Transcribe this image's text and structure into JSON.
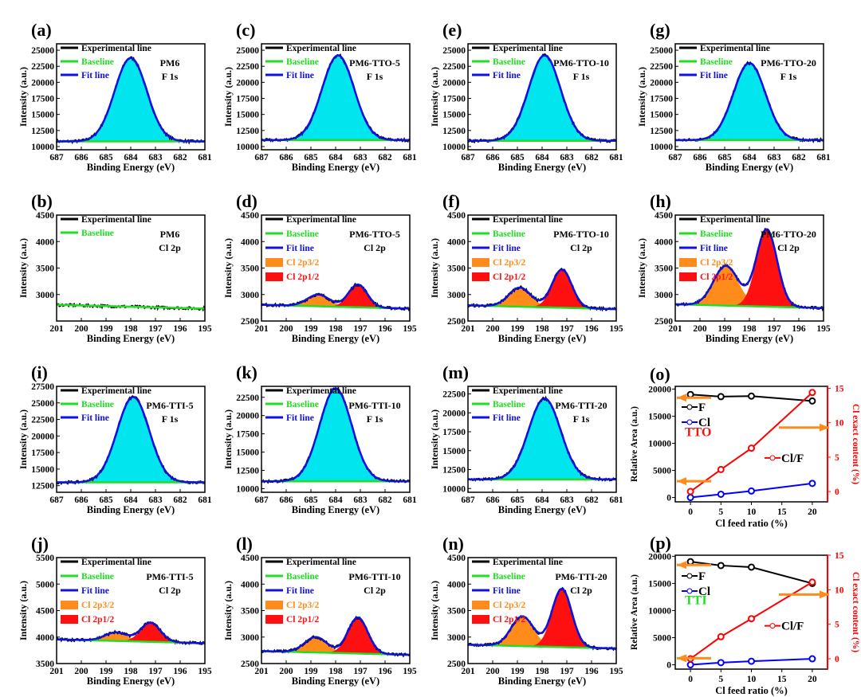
{
  "chart_data": [
    {
      "type": "line",
      "panel": "(a)",
      "sample": "PM6",
      "core": "F 1s",
      "region": "F",
      "ylim": [
        9500,
        26000
      ],
      "yticks": [
        10000,
        12500,
        15000,
        17500,
        20000,
        22500,
        25000
      ],
      "baseline": 10800,
      "peaks": [
        {
          "center": 684,
          "amp": 13000,
          "sigma": 0.65,
          "color": "#00e5ee"
        }
      ],
      "legend": [
        "Experimental line",
        "Baseline",
        "Fit line"
      ]
    },
    {
      "type": "line",
      "panel": "(c)",
      "sample": "PM6-TTO-5",
      "core": "F 1s",
      "region": "F",
      "ylim": [
        9500,
        26000
      ],
      "yticks": [
        10000,
        12500,
        15000,
        17500,
        20000,
        22500,
        25000
      ],
      "baseline": 11000,
      "peaks": [
        {
          "center": 683.9,
          "amp": 13200,
          "sigma": 0.65,
          "color": "#00e5ee"
        }
      ],
      "legend": [
        "Experimental line",
        "Baseline",
        "Fit line"
      ]
    },
    {
      "type": "line",
      "panel": "(e)",
      "sample": "PM6-TTO-10",
      "core": "F 1s",
      "region": "F",
      "ylim": [
        9500,
        26000
      ],
      "yticks": [
        10000,
        12500,
        15000,
        17500,
        20000,
        22500,
        25000
      ],
      "baseline": 10900,
      "peaks": [
        {
          "center": 683.9,
          "amp": 13300,
          "sigma": 0.65,
          "color": "#00e5ee"
        }
      ],
      "legend": [
        "Experimental line",
        "Baseline",
        "Fit line"
      ]
    },
    {
      "type": "line",
      "panel": "(g)",
      "sample": "PM6-TTO-20",
      "core": "F 1s",
      "region": "F",
      "ylim": [
        9500,
        26000
      ],
      "yticks": [
        10000,
        12500,
        15000,
        17500,
        20000,
        22500,
        25000
      ],
      "baseline": 11000,
      "peaks": [
        {
          "center": 684,
          "amp": 12000,
          "sigma": 0.65,
          "color": "#00e5ee"
        }
      ],
      "legend": [
        "Experimental line",
        "Baseline",
        "Fit line"
      ]
    },
    {
      "type": "line",
      "panel": "(b)",
      "sample": "PM6",
      "core": "Cl 2p",
      "region": "Cl",
      "ylim": [
        2500,
        4500
      ],
      "yticks": [
        3000,
        3500,
        4000,
        4500
      ],
      "baseline": 2770,
      "peaks": [],
      "legend": [
        "Experimental line",
        "Baseline"
      ]
    },
    {
      "type": "line",
      "panel": "(d)",
      "sample": "PM6-TTO-5",
      "core": "Cl 2p",
      "region": "Cl",
      "ylim": [
        2500,
        4500
      ],
      "yticks": [
        2500,
        3000,
        3500,
        4000,
        4500
      ],
      "baseline": 2770,
      "peaks": [
        {
          "center": 198.7,
          "amp": 220,
          "sigma": 0.45,
          "color": "#ff8c1a"
        },
        {
          "center": 197.1,
          "amp": 430,
          "sigma": 0.38,
          "color": "#ff1010"
        }
      ],
      "legend": [
        "Experimental line",
        "Baseline",
        "Fit line",
        "Cl 2p3/2",
        "Cl 2p1/2"
      ]
    },
    {
      "type": "line",
      "panel": "(f)",
      "sample": "PM6-TTO-10",
      "core": "Cl 2p",
      "region": "Cl",
      "ylim": [
        2500,
        4500
      ],
      "yticks": [
        2500,
        3000,
        3500,
        4000,
        4500
      ],
      "baseline": 2760,
      "peaks": [
        {
          "center": 198.9,
          "amp": 360,
          "sigma": 0.45,
          "color": "#ff8c1a"
        },
        {
          "center": 197.2,
          "amp": 720,
          "sigma": 0.4,
          "color": "#ff1010"
        }
      ],
      "legend": [
        "Experimental line",
        "Baseline",
        "Fit line",
        "Cl 2p3/2",
        "Cl 2p1/2"
      ]
    },
    {
      "type": "line",
      "panel": "(h)",
      "sample": "PM6-TTO-20",
      "core": "Cl 2p",
      "region": "Cl",
      "ylim": [
        2500,
        4500
      ],
      "yticks": [
        2500,
        3000,
        3500,
        4000,
        4500
      ],
      "baseline": 2780,
      "peaks": [
        {
          "center": 198.95,
          "amp": 750,
          "sigma": 0.5,
          "color": "#ff8c1a"
        },
        {
          "center": 197.3,
          "amp": 1460,
          "sigma": 0.42,
          "color": "#ff1010"
        }
      ],
      "legend": [
        "Experimental line",
        "Baseline",
        "Fit line",
        "Cl 2p3/2",
        "Cl 2p1/2"
      ]
    },
    {
      "type": "line",
      "panel": "(i)",
      "sample": "PM6-TTI-5",
      "core": "F 1s",
      "region": "F",
      "ylim": [
        11500,
        27500
      ],
      "yticks": [
        12500,
        15000,
        17500,
        20000,
        22500,
        25000,
        27500
      ],
      "baseline": 13000,
      "peaks": [
        {
          "center": 683.9,
          "amp": 12900,
          "sigma": 0.65,
          "color": "#00e5ee"
        }
      ],
      "legend": [
        "Experimental line",
        "Baseline",
        "Fit line"
      ]
    },
    {
      "type": "line",
      "panel": "(k)",
      "sample": "PM6-TTI-10",
      "core": "F 1s",
      "region": "F",
      "ylim": [
        9500,
        24000
      ],
      "yticks": [
        10000,
        12500,
        15000,
        17500,
        20000,
        22500
      ],
      "baseline": 11000,
      "peaks": [
        {
          "center": 684,
          "amp": 12700,
          "sigma": 0.65,
          "color": "#00e5ee"
        }
      ],
      "legend": [
        "Experimental line",
        "Baseline",
        "Fit line"
      ]
    },
    {
      "type": "line",
      "panel": "(m)",
      "sample": "PM6-TTI-20",
      "core": "F 1s",
      "region": "F",
      "ylim": [
        9500,
        23500
      ],
      "yticks": [
        10000,
        12500,
        15000,
        17500,
        20000,
        22500
      ],
      "baseline": 11200,
      "peaks": [
        {
          "center": 683.9,
          "amp": 10700,
          "sigma": 0.65,
          "color": "#00e5ee"
        }
      ],
      "legend": [
        "Experimental line",
        "Baseline",
        "Fit line"
      ]
    },
    {
      "type": "line",
      "panel": "(j)",
      "sample": "PM6-TTI-5",
      "core": "Cl 2p",
      "region": "Cl",
      "ylim": [
        3500,
        5500
      ],
      "yticks": [
        3500,
        4000,
        4500,
        5000,
        5500
      ],
      "baseline": 3920,
      "peaks": [
        {
          "center": 198.6,
          "amp": 160,
          "sigma": 0.45,
          "color": "#ff8c1a"
        },
        {
          "center": 197.2,
          "amp": 360,
          "sigma": 0.4,
          "color": "#ff1010"
        }
      ],
      "legend": [
        "Experimental line",
        "Baseline",
        "Fit line",
        "Cl 2p3/2",
        "Cl 2p1/2"
      ]
    },
    {
      "type": "line",
      "panel": "(l)",
      "sample": "PM6-TTI-10",
      "core": "Cl 2p",
      "region": "Cl",
      "ylim": [
        2500,
        4500
      ],
      "yticks": [
        2500,
        3000,
        3500,
        4000,
        4500
      ],
      "baseline": 2700,
      "peaks": [
        {
          "center": 198.8,
          "amp": 290,
          "sigma": 0.45,
          "color": "#ff8c1a"
        },
        {
          "center": 197.1,
          "amp": 680,
          "sigma": 0.4,
          "color": "#ff1010"
        }
      ],
      "legend": [
        "Experimental line",
        "Baseline",
        "Fit line",
        "Cl 2p3/2",
        "Cl 2p1/2"
      ]
    },
    {
      "type": "line",
      "panel": "(n)",
      "sample": "PM6-TTI-20",
      "core": "Cl 2p",
      "region": "Cl",
      "ylim": [
        2500,
        4500
      ],
      "yticks": [
        2500,
        3000,
        3500,
        4000,
        4500
      ],
      "baseline": 2820,
      "peaks": [
        {
          "center": 198.8,
          "amp": 560,
          "sigma": 0.45,
          "color": "#ff8c1a"
        },
        {
          "center": 197.2,
          "amp": 1100,
          "sigma": 0.4,
          "color": "#ff1010"
        }
      ],
      "legend": [
        "Experimental line",
        "Baseline",
        "Fit line",
        "Cl 2p3/2",
        "Cl 2p1/2"
      ]
    },
    {
      "type": "line",
      "panel": "(o)",
      "tag": "TTO",
      "tagcolor": "#ff1010",
      "x": [
        0,
        5,
        10,
        20
      ],
      "xticks": [
        0,
        5,
        10,
        15,
        20
      ],
      "xlabel": "Cl  feed ratio (%)",
      "ylabel": "Relative Area (a.u.)",
      "y2label": "Cl exact content (%)",
      "ylim": [
        -800,
        20500
      ],
      "yticks": [
        0,
        5000,
        10000,
        15000,
        20000
      ],
      "y2lim": [
        -1.5,
        15.3
      ],
      "y2ticks": [
        0,
        5,
        10,
        15
      ],
      "series": [
        {
          "name": "F",
          "axis": "left",
          "color": "#000000",
          "values": [
            19000,
            18600,
            18700,
            17800
          ]
        },
        {
          "name": "Cl",
          "axis": "left",
          "color": "#0000ff",
          "values": [
            0,
            600,
            1200,
            2600
          ]
        },
        {
          "name": "Cl/F",
          "axis": "right",
          "color": "#ff0000",
          "values": [
            0,
            3.2,
            6.3,
            14.4
          ]
        }
      ]
    },
    {
      "type": "line",
      "panel": "(p)",
      "tag": "TTI",
      "tagcolor": "#22dd22",
      "x": [
        0,
        5,
        10,
        20
      ],
      "xticks": [
        0,
        5,
        10,
        15,
        20
      ],
      "xlabel": "Cl  feed ratio (%)",
      "ylabel": "Relative Area (a.u.)",
      "y2label": "Cl exact content (%)",
      "ylim": [
        -800,
        20200
      ],
      "yticks": [
        0,
        5000,
        10000,
        15000,
        20000
      ],
      "y2lim": [
        -1.5,
        15
      ],
      "y2ticks": [
        0,
        5,
        10,
        15
      ],
      "series": [
        {
          "name": "F",
          "axis": "left",
          "color": "#000000",
          "values": [
            19000,
            18300,
            18000,
            15000
          ]
        },
        {
          "name": "Cl",
          "axis": "left",
          "color": "#0000ff",
          "values": [
            0,
            400,
            650,
            1100
          ]
        },
        {
          "name": "Cl/F",
          "axis": "right",
          "color": "#ff0000",
          "values": [
            0,
            3.2,
            5.8,
            11.1
          ]
        }
      ]
    }
  ],
  "xps_xlabel": "Binding Energy (eV)",
  "xps_ylabel": "Intensity (a.u.)"
}
